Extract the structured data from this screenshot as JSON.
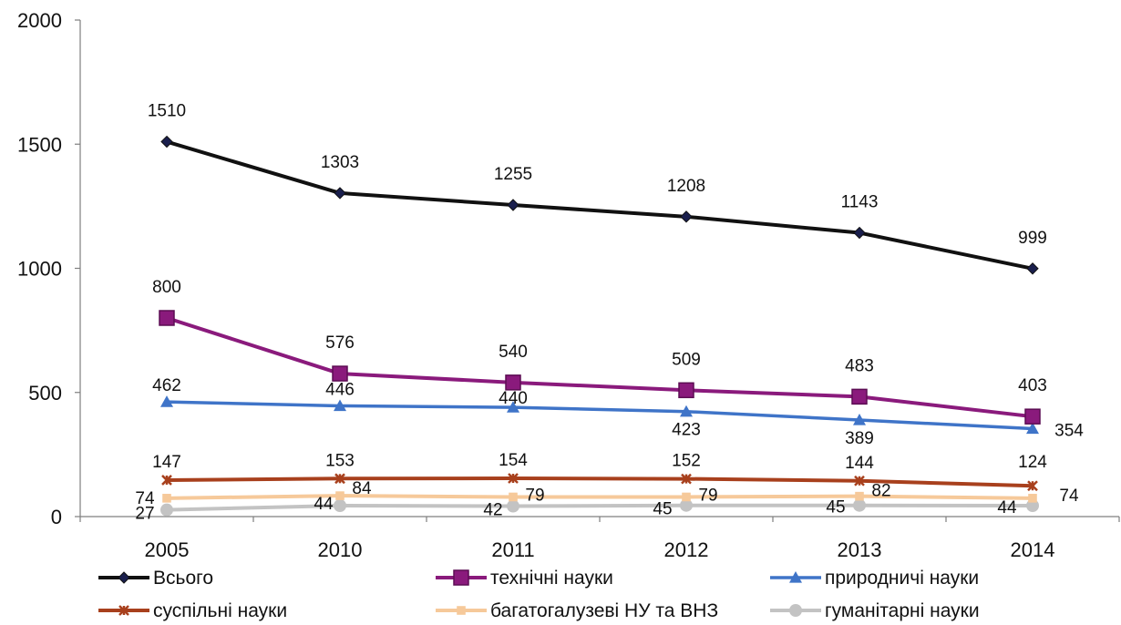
{
  "chart_data": {
    "type": "line",
    "title": "",
    "xlabel": "",
    "ylabel": "",
    "categories": [
      "2005",
      "2010",
      "2011",
      "2012",
      "2013",
      "2014"
    ],
    "ylim": [
      0,
      2000
    ],
    "yticks": [
      "0",
      "500",
      "1000",
      "1500",
      "2000"
    ],
    "grid": false,
    "legend_position": "bottom",
    "series": [
      {
        "name": "Всього",
        "color": "#111111",
        "marker": "diamond",
        "values": [
          1510,
          1303,
          1255,
          1208,
          1143,
          999
        ],
        "labels": [
          "1510",
          "1303",
          "1255",
          "1208",
          "1143",
          "999"
        ]
      },
      {
        "name": "технічні науки",
        "color": "#8a1a7c",
        "marker": "square",
        "values": [
          800,
          576,
          540,
          509,
          483,
          403
        ],
        "labels": [
          "800",
          "576",
          "540",
          "509",
          "483",
          "403"
        ]
      },
      {
        "name": "природничі науки",
        "color": "#3f74c8",
        "marker": "triangle",
        "values": [
          462,
          446,
          440,
          423,
          389,
          354
        ],
        "labels": [
          "462",
          "446",
          "440",
          "423",
          "389",
          "354"
        ]
      },
      {
        "name": "суспільні науки",
        "color": "#a8401d",
        "marker": "star",
        "values": [
          147,
          153,
          154,
          152,
          144,
          124
        ],
        "labels": [
          "147",
          "153",
          "154",
          "152",
          "144",
          "124"
        ]
      },
      {
        "name": "багатогалузеві НУ та ВНЗ",
        "color": "#f6c99a",
        "marker": "square-small",
        "values": [
          74,
          84,
          79,
          79,
          82,
          74
        ],
        "labels": [
          "74",
          "84",
          "79",
          "79",
          "82",
          "74"
        ]
      },
      {
        "name": "гуманітарні науки",
        "color": "#c3c3c3",
        "marker": "circle",
        "values": [
          27,
          44,
          42,
          45,
          45,
          44
        ],
        "labels": [
          "27",
          "44",
          "42",
          "45",
          "45",
          "44"
        ]
      }
    ]
  }
}
